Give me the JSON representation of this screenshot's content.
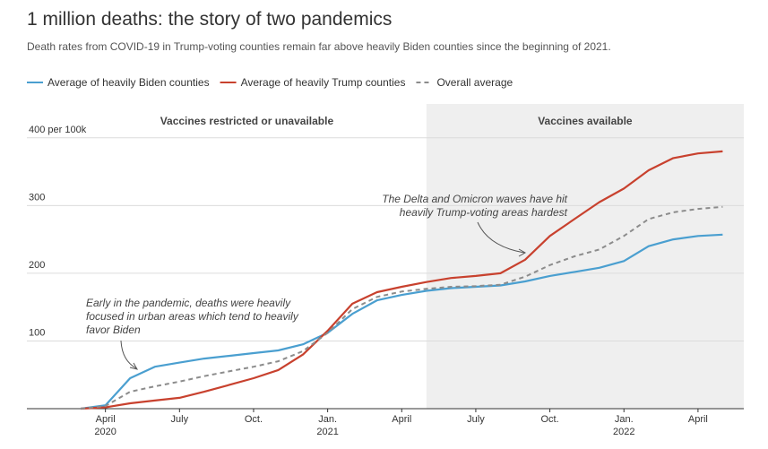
{
  "chart_data": {
    "type": "line",
    "title": "1 million deaths: the story of two pandemics",
    "subtitle": "Death rates from COVID-19 in Trump-voting counties remain far above heavily Biden counties since the beginning of 2021.",
    "x": [
      "2020-03",
      "2020-04",
      "2020-05",
      "2020-06",
      "2020-07",
      "2020-08",
      "2020-09",
      "2020-10",
      "2020-11",
      "2020-12",
      "2021-01",
      "2021-02",
      "2021-03",
      "2021-04",
      "2021-05",
      "2021-06",
      "2021-07",
      "2021-08",
      "2021-09",
      "2021-10",
      "2021-11",
      "2021-12",
      "2022-01",
      "2022-02",
      "2022-03",
      "2022-04",
      "2022-05"
    ],
    "series": [
      {
        "name": "Average of heavily Biden counties",
        "color": "#4a9fd0",
        "dash": false,
        "values": [
          0,
          5,
          45,
          62,
          68,
          74,
          78,
          82,
          86,
          95,
          112,
          140,
          160,
          168,
          174,
          178,
          180,
          182,
          188,
          196,
          202,
          208,
          218,
          240,
          250,
          255,
          257
        ]
      },
      {
        "name": "Average of heavily Trump counties",
        "color": "#c8412e",
        "dash": false,
        "values": [
          0,
          2,
          8,
          12,
          16,
          25,
          35,
          45,
          57,
          80,
          115,
          155,
          172,
          180,
          187,
          193,
          196,
          200,
          220,
          255,
          280,
          305,
          325,
          352,
          370,
          377,
          380
        ]
      },
      {
        "name": "Overall average",
        "color": "#8c8c8c",
        "dash": true,
        "values": [
          0,
          4,
          25,
          33,
          40,
          48,
          55,
          62,
          70,
          85,
          112,
          147,
          165,
          173,
          177,
          180,
          181,
          183,
          195,
          212,
          225,
          235,
          255,
          280,
          290,
          295,
          298
        ]
      }
    ],
    "xlim": [
      "2020-01",
      "2022-06"
    ],
    "xticks": [
      {
        "value": "2020-04",
        "label": "April",
        "year": "2020"
      },
      {
        "value": "2020-07",
        "label": "July"
      },
      {
        "value": "2020-10",
        "label": "Oct."
      },
      {
        "value": "2021-01",
        "label": "Jan.",
        "year": "2021"
      },
      {
        "value": "2021-04",
        "label": "April"
      },
      {
        "value": "2021-07",
        "label": "July"
      },
      {
        "value": "2021-10",
        "label": "Oct."
      },
      {
        "value": "2022-01",
        "label": "Jan.",
        "year": "2022"
      },
      {
        "value": "2022-04",
        "label": "April"
      }
    ],
    "ylim": [
      0,
      450
    ],
    "yticks": [
      100,
      200,
      300,
      {
        "value": 400,
        "label": "400 per 100k"
      }
    ],
    "grid": true,
    "regions": [
      {
        "label": "Vaccines restricted or unavailable",
        "start": "2020-01",
        "end": "2021-05",
        "shaded": false
      },
      {
        "label": "Vaccines available",
        "start": "2021-05",
        "end": "2022-06",
        "shaded": true
      }
    ],
    "annotations": [
      {
        "lines": [
          "The Delta and Omicron waves have hit",
          "heavily Trump-voting areas hardest"
        ]
      },
      {
        "lines": [
          "Early in the pandemic, deaths were heavily",
          "focused in urban areas which tend to heavily",
          "favor Biden"
        ]
      }
    ]
  }
}
